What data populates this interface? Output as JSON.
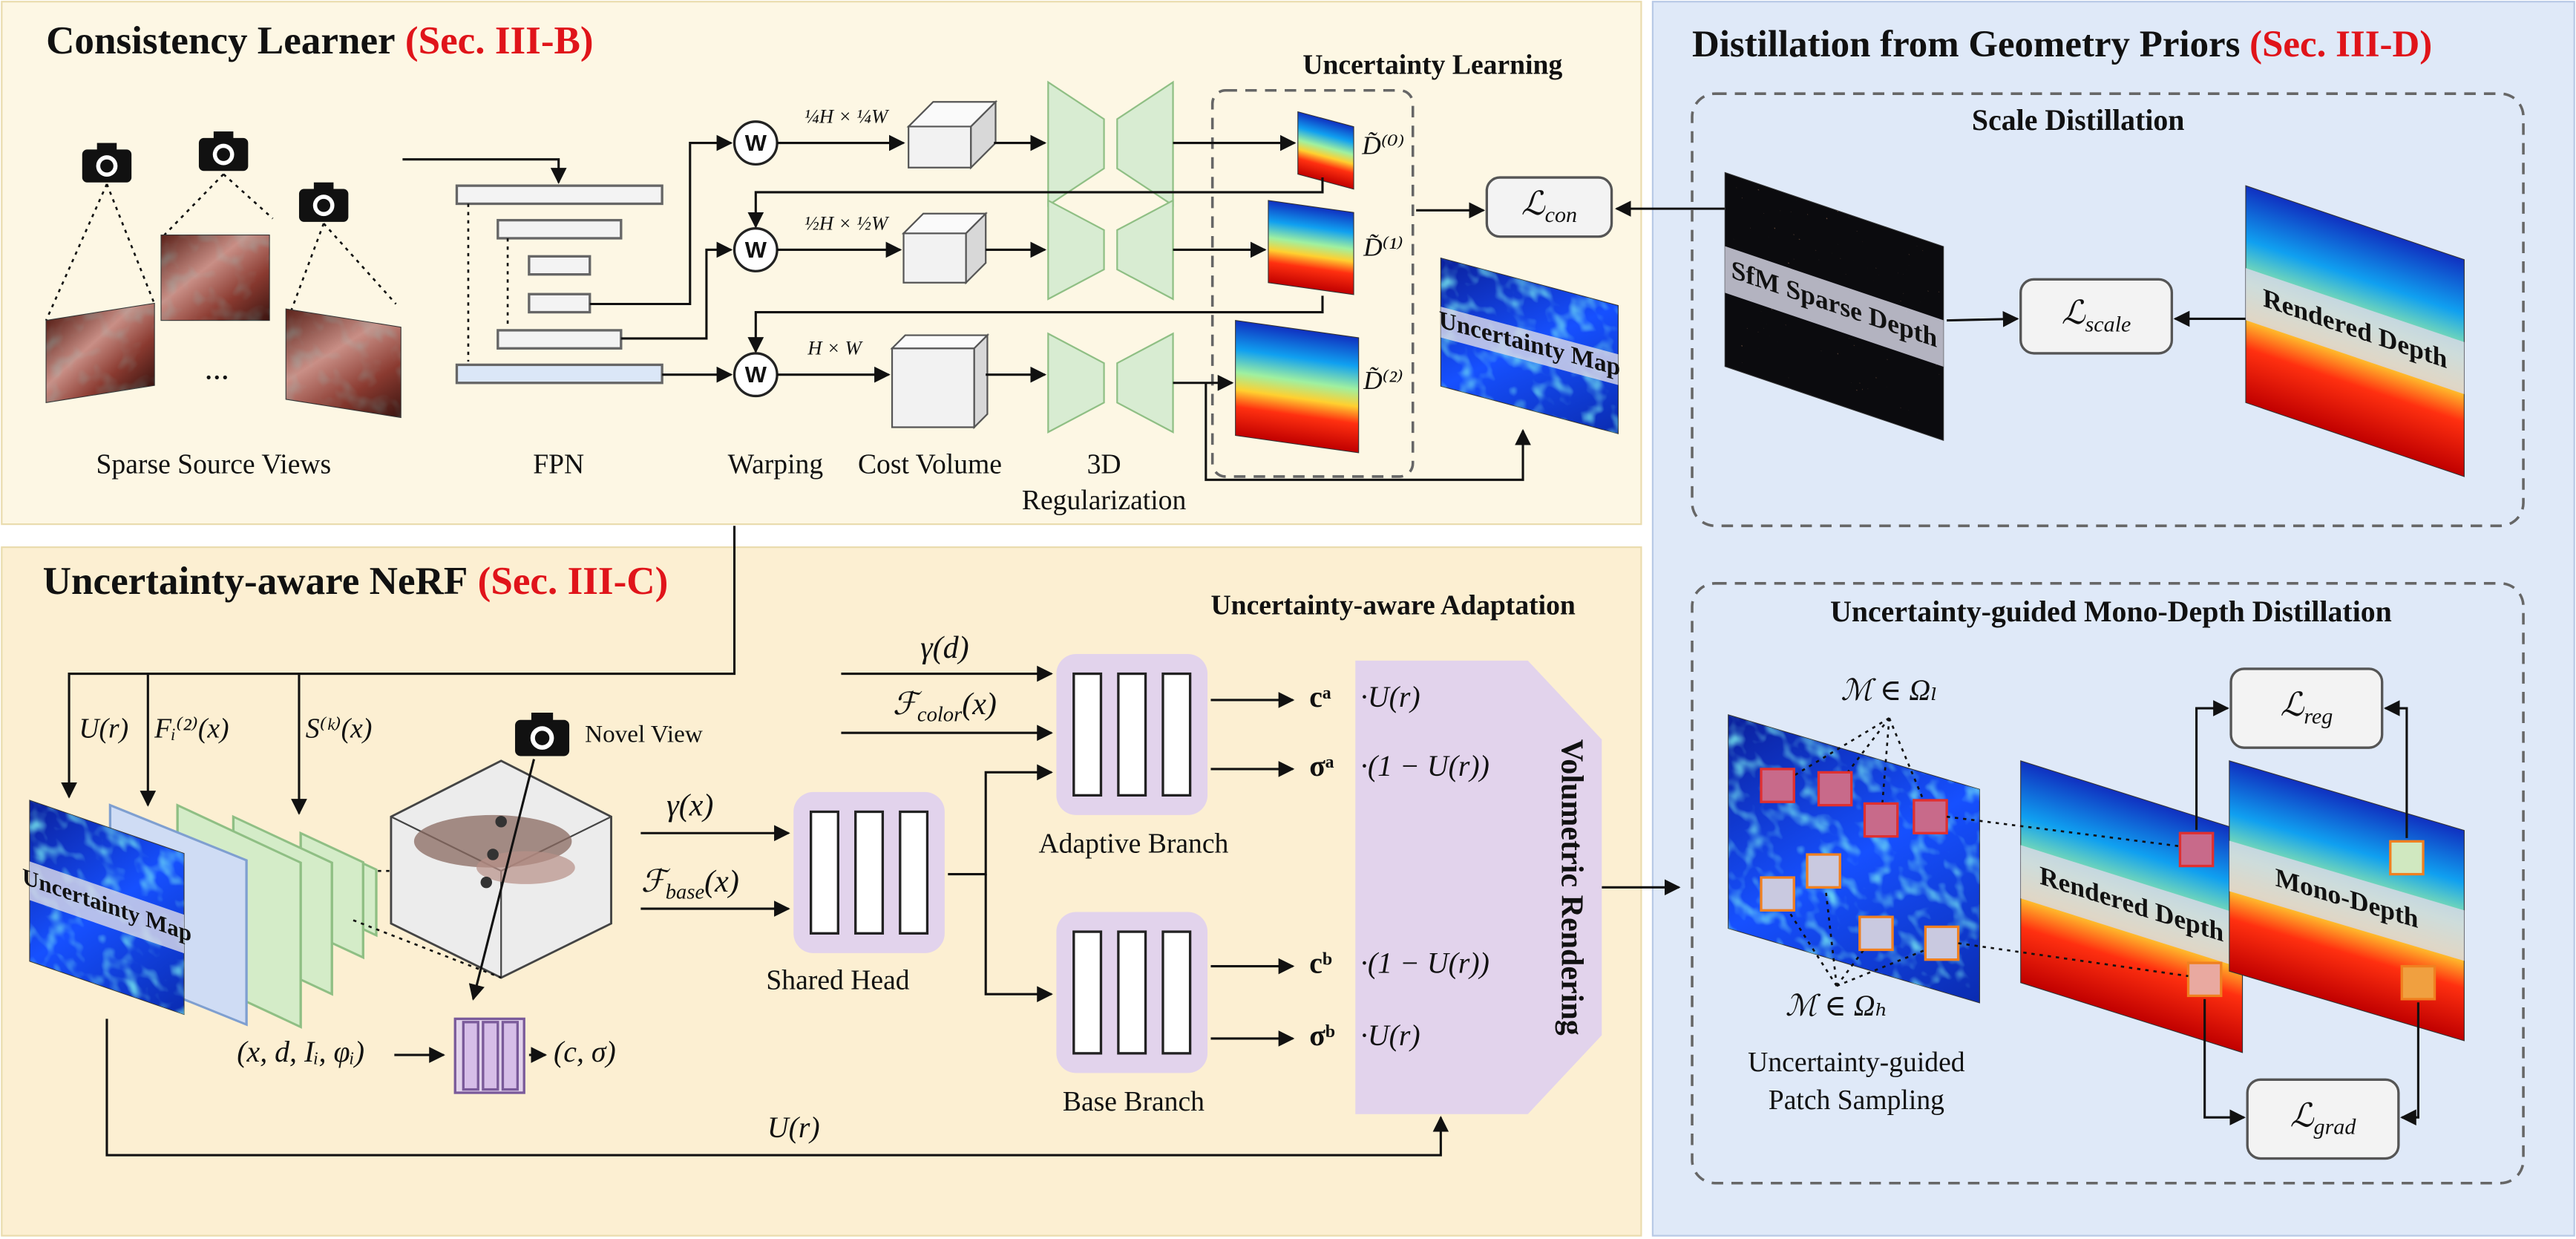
{
  "sections": {
    "consistency": {
      "title": "Consistency Learner",
      "ref": "(Sec. III-B)"
    },
    "nerf": {
      "title": "Uncertainty-aware NeRF",
      "ref": "(Sec. III-C)"
    },
    "distillation": {
      "title": "Distillation from Geometry Priors",
      "ref": "(Sec. III-D)"
    }
  },
  "subsections": {
    "uncertainty_learning": "Uncertainty Learning",
    "scale": "Scale Distillation",
    "mono": "Uncertainty-guided Mono-Depth Distillation",
    "adaptation": "Uncertainty-aware Adaptation"
  },
  "consistency": {
    "source_views": "Sparse Source Views",
    "ellipsis": "...",
    "fpn": "FPN",
    "warping": "Warping",
    "cost_volume": "Cost Volume",
    "regularization": [
      "3D",
      "Regularization"
    ],
    "warp_symbols": [
      "W",
      "W",
      "W"
    ],
    "resolutions": [
      "¼H × ¼W",
      "½H × ½W",
      "H × W"
    ],
    "depths": [
      "D̃⁽⁰⁾",
      "D̃⁽¹⁾",
      "D̃⁽²⁾"
    ],
    "uncertainty_map": "Uncertainty Map",
    "loss": {
      "main": "ℒ",
      "sub": "con"
    }
  },
  "nerf": {
    "inputs": [
      "U(r)",
      "Fᵢ⁽²⁾(x)",
      "S⁽ᵏ⁾(x)"
    ],
    "uncertainty_map": "Uncertainty Map",
    "novel_view": "Novel View",
    "gamma_x": "γ(x)",
    "f_base": {
      "main": "ℱ",
      "sub": "base",
      "after": "(x)"
    },
    "gamma_d": "γ(d)",
    "f_color": {
      "main": "ℱ",
      "sub": "color",
      "after": "(x)"
    },
    "shared_head": "Shared Head",
    "adaptive_branch": "Adaptive Branch",
    "base_branch": "Base Branch",
    "outputs": [
      "cᵃ",
      "σᵃ",
      "cᵇ",
      "σᵇ"
    ],
    "weights": [
      "·U(r)",
      "·(1 − U(r))",
      "·(1 − U(r))",
      "·U(r)"
    ],
    "volumetric": "Volumetric Rendering",
    "mlp_input": "(x, d, Iᵢ, φᵢ)",
    "mlp_output": "(c, σ)",
    "bottom_u": "U(r)"
  },
  "distillation": {
    "sfm": "SfM Sparse Depth",
    "rendered_depth": "Rendered Depth",
    "scale_loss": {
      "main": "ℒ",
      "sub": "scale"
    },
    "low_set": "ℳ ∈ Ωₗ",
    "high_set": "ℳ ∈ Ωₕ",
    "patch_sampling": [
      "Uncertainty-guided",
      "Patch Sampling"
    ],
    "rendered_depth_2": "Rendered Depth",
    "mono_depth": "Mono-Depth",
    "reg_loss": {
      "main": "ℒ",
      "sub": "reg"
    },
    "grad_loss": {
      "main": "ℒ",
      "sub": "grad"
    }
  }
}
